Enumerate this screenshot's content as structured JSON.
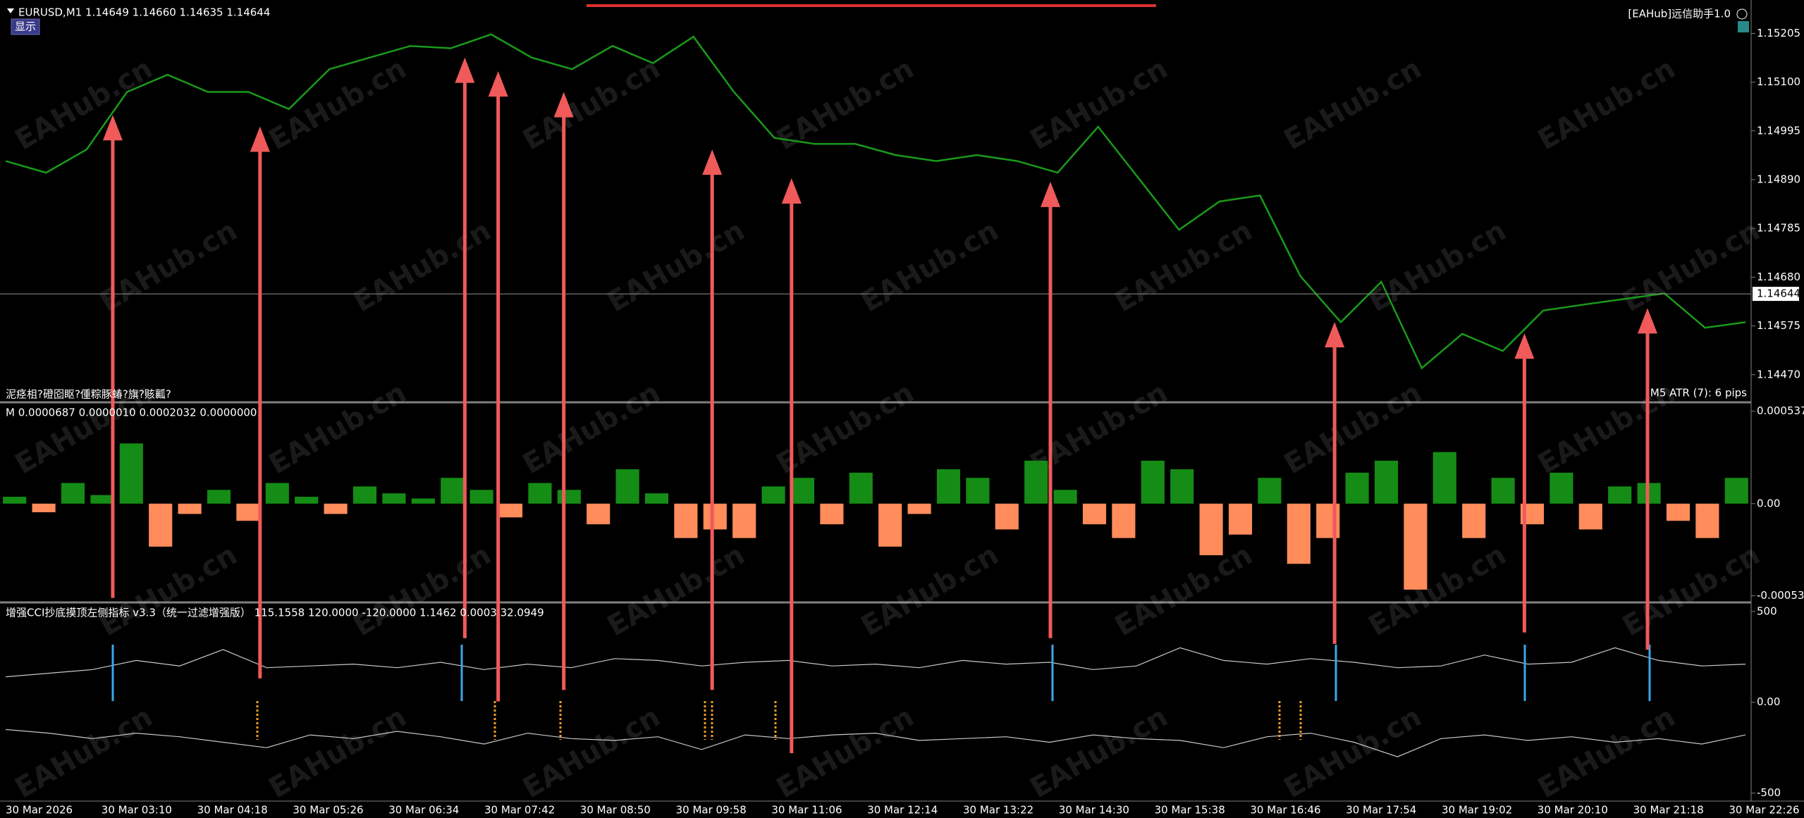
{
  "ui": {
    "show_button": "显示",
    "ea_label": "[EAHub]远信助手1.0",
    "watermark": "EAHub.cn"
  },
  "chart_data": [
    {
      "type": "line",
      "title": "EURUSD,M1  1.14649 1.14660 1.14635 1.14644",
      "series": [
        {
          "color": "#1a9a1a",
          "values": [
            1.1493,
            1.14905,
            1.14955,
            1.15079,
            1.15116,
            1.15079,
            1.15079,
            1.15042,
            1.15128,
            1.15153,
            1.15178,
            1.15173,
            1.15203,
            1.15153,
            1.15128,
            1.15178,
            1.15141,
            1.15198,
            1.15079,
            1.1498,
            1.14967,
            1.14967,
            1.14943,
            1.1493,
            1.14943,
            1.1493,
            1.14905,
            1.15004,
            1.14893,
            1.14782,
            1.14843,
            1.14856,
            1.14682,
            1.14583,
            1.1467,
            1.14484,
            1.14558,
            1.14521,
            1.14608,
            1.14621,
            1.14633,
            1.14645,
            1.14571,
            1.14583
          ]
        }
      ],
      "ylim": [
        1.14415,
        1.15277
      ],
      "yticks": [
        1.15205,
        {
          "value": 1.151,
          "label": "1.15100"
        },
        1.14995,
        {
          "value": 1.1489,
          "label": "1.14890"
        },
        1.14785,
        {
          "value": 1.1468,
          "label": "1.14680"
        },
        1.14575,
        {
          "value": 1.1447,
          "label": "1.14470"
        }
      ],
      "current_price": 1.14644,
      "annotations": [
        "泥痉柤?磴囵眍?偅粽豚蝽?旗?赅瓤?",
        "M5 ATR (7): 6 pips"
      ]
    },
    {
      "type": "bar",
      "title": "M 0.0000687 0.0000010 0.0002032 0.0000000",
      "values": [
        4e-05,
        -5e-05,
        0.00012,
        5e-05,
        0.00035,
        -0.00025,
        -6e-05,
        8e-05,
        -0.0001,
        0.00012,
        4e-05,
        -6e-05,
        0.0001,
        6e-05,
        3e-05,
        0.00015,
        8e-05,
        -8e-05,
        0.00012,
        8e-05,
        -0.00012,
        0.0002,
        6e-05,
        -0.0002,
        -0.00015,
        -0.0002,
        0.0001,
        0.00015,
        -0.00012,
        0.00018,
        -0.00025,
        -6e-05,
        0.0002,
        0.00015,
        -0.00015,
        0.00025,
        8e-05,
        -0.00012,
        -0.0002,
        0.00025,
        0.0002,
        -0.0003,
        -0.00018,
        0.00015,
        -0.00035,
        -0.0002,
        0.00018,
        0.00025,
        -0.0005,
        0.0003,
        -0.0002,
        0.00015,
        -0.00012,
        0.00018,
        -0.00015,
        0.0001,
        0.00012,
        -0.0001,
        -0.0002,
        0.00015
      ],
      "colors": {
        "up": "#158c15",
        "down": "#ff8c5a"
      },
      "ylim": [
        -0.000562,
        0.000577
      ],
      "yticks": [
        0.0005372,
        {
          "value": 0,
          "label": "0.00"
        },
        -0.0005355
      ]
    },
    {
      "type": "line",
      "title": "增强CCI抄底摸顶左侧指标 v3.3（统一过滤增强版） 115.1558 120.0000 -120.0000 1.1462 0.0003 32.0949",
      "series": [
        {
          "color": "#c8c8c8",
          "values": [
            140,
            160,
            180,
            230,
            200,
            290,
            190,
            200,
            210,
            190,
            220,
            180,
            210,
            190,
            240,
            230,
            200,
            220,
            230,
            200,
            210,
            190,
            230,
            210,
            220,
            180,
            200,
            300,
            230,
            210,
            240,
            220,
            190,
            200,
            260,
            210,
            220,
            300,
            230,
            200,
            210
          ]
        },
        {
          "color": "#c8c8c8",
          "values": [
            -150,
            -170,
            -200,
            -170,
            -190,
            -220,
            -250,
            -180,
            -200,
            -160,
            -190,
            -230,
            -170,
            -200,
            -210,
            -190,
            -260,
            -180,
            -200,
            -180,
            -170,
            -210,
            -200,
            -190,
            -220,
            -180,
            -200,
            -210,
            -250,
            -190,
            -170,
            -220,
            -300,
            -200,
            -180,
            -210,
            -190,
            -220,
            -200,
            -230,
            -180
          ]
        }
      ],
      "ylim": [
        -544,
        538
      ],
      "yticks": [
        500,
        {
          "value": 0,
          "label": "0.00"
        },
        -500
      ],
      "xtick_labels": [
        "30 Mar 2026",
        "30 Mar 03:10",
        "30 Mar 04:18",
        "30 Mar 05:26",
        "30 Mar 06:34",
        "30 Mar 07:42",
        "30 Mar 08:50",
        "30 Mar 09:58",
        "30 Mar 11:06",
        "30 Mar 12:14",
        "30 Mar 13:22",
        "30 Mar 14:30",
        "30 Mar 15:38",
        "30 Mar 16:46",
        "30 Mar 17:54",
        "30 Mar 19:02",
        "30 Mar 20:10",
        "30 Mar 21:18",
        "30 Mar 22:26"
      ]
    }
  ]
}
